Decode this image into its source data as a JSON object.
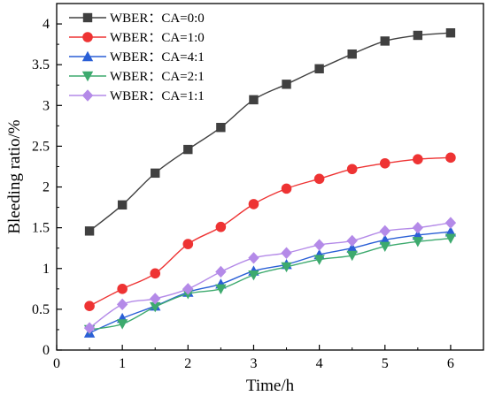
{
  "chart_data": {
    "type": "line",
    "title": "",
    "xlabel": "Time/h",
    "ylabel": "Bleeding ratio/%",
    "xlim": [
      0,
      6.5
    ],
    "ylim": [
      0,
      4.25
    ],
    "xticks": [
      0,
      1,
      2,
      3,
      4,
      5,
      6
    ],
    "yticks": [
      0,
      0.5,
      1,
      1.5,
      2,
      2.5,
      3,
      3.5,
      4
    ],
    "xtick_labels": [
      "0",
      "1",
      "2",
      "3",
      "4",
      "5",
      "6"
    ],
    "ytick_labels": [
      "0",
      "0.5",
      "1",
      "1.5",
      "2",
      "2.5",
      "3",
      "3.5",
      "4"
    ],
    "grid": false,
    "legend_position": "top-left",
    "x": [
      0.5,
      1,
      1.5,
      2,
      2.5,
      3,
      3.5,
      4,
      4.5,
      5,
      5.5,
      6
    ],
    "series": [
      {
        "name": "WBER：CA=0:0",
        "color": "#404040",
        "marker": "square",
        "values": [
          1.46,
          1.78,
          2.17,
          2.46,
          2.73,
          3.07,
          3.26,
          3.45,
          3.63,
          3.79,
          3.86,
          3.89
        ]
      },
      {
        "name": "WBER：CA=1:0",
        "color": "#ee3333",
        "marker": "circle",
        "values": [
          0.54,
          0.75,
          0.94,
          1.3,
          1.51,
          1.79,
          1.98,
          2.1,
          2.22,
          2.29,
          2.34,
          2.36
        ]
      },
      {
        "name": "WBER：CA=4:1",
        "color": "#2a5fd6",
        "marker": "triangle-up",
        "values": [
          0.21,
          0.39,
          0.54,
          0.71,
          0.81,
          0.97,
          1.05,
          1.17,
          1.25,
          1.35,
          1.41,
          1.45
        ]
      },
      {
        "name": "WBER：CA=2:1",
        "color": "#3daa6e",
        "marker": "triangle-down",
        "values": [
          0.25,
          0.32,
          0.53,
          0.69,
          0.75,
          0.92,
          1.02,
          1.11,
          1.16,
          1.27,
          1.33,
          1.37
        ]
      },
      {
        "name": "WBER：CA=1:1",
        "color": "#b48ae8",
        "marker": "diamond",
        "values": [
          0.27,
          0.56,
          0.63,
          0.75,
          0.96,
          1.13,
          1.19,
          1.29,
          1.34,
          1.46,
          1.5,
          1.56
        ]
      }
    ]
  }
}
